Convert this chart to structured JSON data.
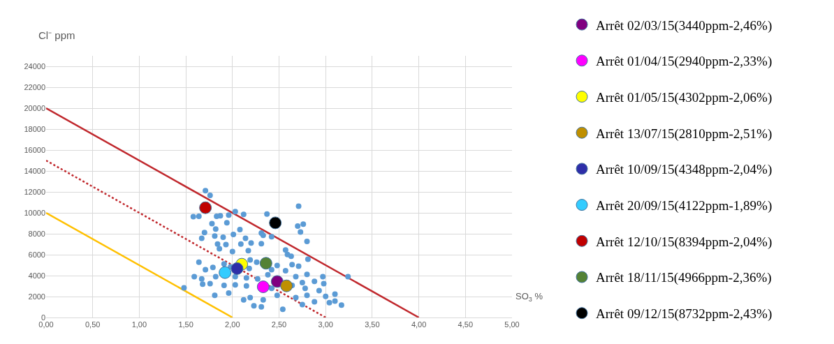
{
  "chart_data": {
    "type": "scatter",
    "xlabel": "SO$_{3}$ %",
    "ylabel": "Cl⁻ ppm",
    "xlim": [
      0,
      5
    ],
    "xticks": [
      {
        "value": 0,
        "label": "0,00"
      },
      {
        "value": 0.5,
        "label": "0,50"
      },
      {
        "value": 1,
        "label": "1,00"
      },
      {
        "value": 1.5,
        "label": "1,50"
      },
      {
        "value": 2,
        "label": "2,00"
      },
      {
        "value": 2.5,
        "label": "2,50"
      },
      {
        "value": 3,
        "label": "3,00"
      },
      {
        "value": 3.5,
        "label": "3,50"
      },
      {
        "value": 4,
        "label": "4,00"
      },
      {
        "value": 4.5,
        "label": "4,50"
      },
      {
        "value": 5,
        "label": "5,00"
      }
    ],
    "ylim": [
      0,
      25000
    ],
    "yticks": [
      0,
      2000,
      4000,
      6000,
      8000,
      10000,
      12000,
      14000,
      16000,
      18000,
      20000,
      22000,
      24000
    ],
    "grid": true,
    "legend": "right",
    "marker": "circle",
    "series": [
      {
        "type": "line",
        "marker": "none",
        "color": "#c0282d",
        "line_style": "solid",
        "x": [
          0,
          4
        ],
        "values": [
          20000,
          0
        ]
      },
      {
        "type": "line",
        "marker": "none",
        "color": "#c0282d",
        "line_style": "dotted",
        "x": [
          0,
          3
        ],
        "values": [
          15000,
          0
        ]
      },
      {
        "type": "line",
        "marker": "none",
        "color": "#ffc000",
        "line_style": "solid",
        "x": [
          0,
          2
        ],
        "values": [
          10000,
          0
        ]
      },
      {
        "color": "#5b9bd5",
        "x": [
          1.71,
          1.76,
          1.58,
          1.64,
          1.83,
          1.87,
          1.96,
          2.03,
          2.12,
          2.37,
          2.71,
          1.78,
          1.94,
          2.7,
          2.76,
          2.73,
          2.8,
          1.7,
          1.82,
          2.08,
          2.31,
          2.33,
          2.42,
          1.67,
          1.81,
          1.9,
          2.01,
          2.14,
          1.84,
          1.93,
          2.09,
          2.2,
          2.31,
          2.0,
          2.17,
          1.86,
          2.57,
          2.59,
          2.63,
          2.81,
          1.64,
          1.91,
          2.19,
          2.26,
          2.48,
          2.64,
          2.71,
          1.71,
          1.79,
          1.98,
          2.18,
          2.42,
          2.57,
          2.8,
          2.97,
          3.24,
          1.59,
          1.67,
          1.82,
          2.03,
          2.15,
          2.27,
          2.38,
          2.68,
          2.75,
          2.88,
          1.48,
          1.68,
          1.76,
          1.91,
          2.03,
          2.15,
          2.42,
          2.64,
          2.78,
          2.93,
          2.98,
          1.81,
          1.96,
          2.12,
          2.19,
          2.33,
          2.48,
          2.68,
          2.8,
          3.0,
          3.1,
          3.1,
          3.17,
          3.04,
          2.23,
          2.31,
          2.54,
          2.75,
          2.88
        ],
        "values": [
          12110,
          11670,
          9630,
          9670,
          9670,
          9720,
          9780,
          10110,
          9850,
          9890,
          10630,
          8960,
          9050,
          8740,
          8920,
          8160,
          7270,
          8120,
          8450,
          8400,
          8070,
          7850,
          7720,
          7560,
          7780,
          7670,
          7940,
          7560,
          7010,
          6960,
          7010,
          7120,
          7050,
          6300,
          6390,
          6560,
          6450,
          6010,
          5850,
          5560,
          5280,
          5120,
          5500,
          5280,
          4970,
          5050,
          4900,
          4560,
          4790,
          4830,
          4680,
          4570,
          4460,
          4120,
          3900,
          3900,
          3900,
          3680,
          3900,
          3900,
          3790,
          3680,
          4080,
          3900,
          3340,
          3450,
          2830,
          3190,
          3230,
          3060,
          3120,
          3010,
          2790,
          3060,
          2790,
          2570,
          3230,
          2120,
          2340,
          1680,
          1900,
          1680,
          2120,
          1900,
          2120,
          2010,
          2230,
          1570,
          1190,
          1410,
          1120,
          1010,
          790,
          1230,
          1500
        ]
      },
      {
        "name": "Arrêt 02/03/15(3440ppm-2,46%)",
        "color": "#800080",
        "x": [
          2.48
        ],
        "values": [
          3440
        ]
      },
      {
        "name": "Arrêt 01/04/15(2940ppm-2,33%)",
        "color": "#ff00ff",
        "x": [
          2.33
        ],
        "values": [
          2930
        ]
      },
      {
        "name": "Arrêt 01/05/15(4302ppm-2,06%)",
        "color": "#ffff00",
        "x": [
          2.1
        ],
        "values": [
          5090
        ]
      },
      {
        "name": "Arrêt 13/07/15(2810ppm-2,51%)",
        "color": "#bf8f00",
        "x": [
          2.58
        ],
        "values": [
          3020
        ]
      },
      {
        "name": "Arrêt 10/09/15(4348ppm-2,04%)",
        "color": "#2e2ea8",
        "x": [
          2.05
        ],
        "values": [
          4670
        ]
      },
      {
        "name": "Arrêt 20/09/15(4122ppm-1,89%)",
        "color": "#33ccff",
        "x": [
          1.92
        ],
        "values": [
          4290
        ]
      },
      {
        "name": "Arrêt 12/10/15(8394ppm-2,04%)",
        "color": "#c00000",
        "x": [
          1.71
        ],
        "values": [
          10490
        ]
      },
      {
        "name": "Arrêt 18/11/15(4966ppm-2,36%)",
        "color": "#548235",
        "x": [
          2.36
        ],
        "values": [
          5180
        ]
      },
      {
        "name": "Arrêt 09/12/15(8732ppm-2,43%)",
        "color": "#000000",
        "x": [
          2.46
        ],
        "values": [
          9040
        ]
      }
    ]
  }
}
